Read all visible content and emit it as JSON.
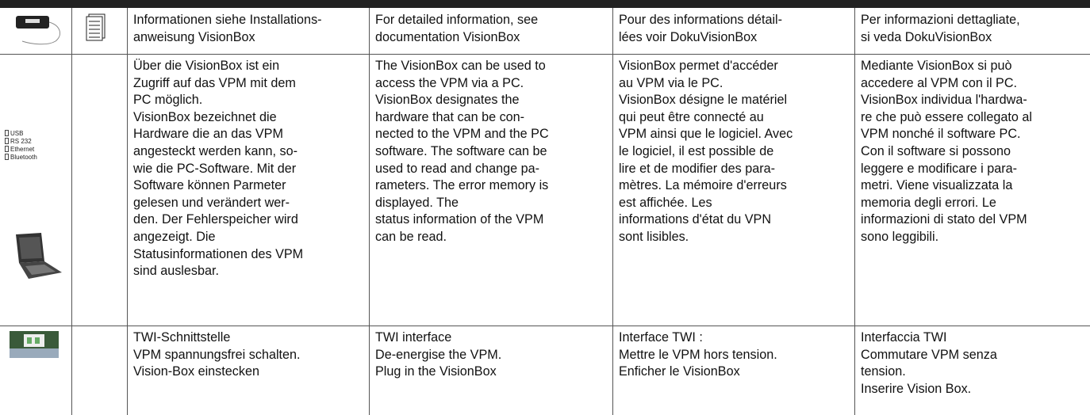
{
  "interfaces": [
    "USB",
    "RS 232",
    "Ethernet",
    "Bluetooth"
  ],
  "rows": [
    {
      "cells": [
        [
          "Informationen siehe Installations-",
          "anweisung VisionBox"
        ],
        [
          "For detailed information, see",
          "documentation VisionBox"
        ],
        [
          "Pour des informations détail-",
          "lées voir DokuVisionBox"
        ],
        [
          "Per informazioni dettagliate,",
          "si veda DokuVisionBox"
        ]
      ]
    },
    {
      "cells": [
        [
          "Über die VisionBox ist ein",
          "Zugriff auf das VPM mit dem",
          "PC möglich.",
          "VisionBox bezeichnet die",
          "Hardware die an das VPM",
          "angesteckt werden kann, so-",
          "wie die PC-Software. Mit der",
          "Software können Parmeter",
          "gelesen und verändert wer-",
          "den. Der Fehlerspeicher wird",
          "angezeigt. Die",
          "Statusinformationen des VPM",
          "sind auslesbar."
        ],
        [
          "The VisionBox can be used to",
          "access the VPM via a PC.",
          "VisionBox designates the",
          "hardware that can be con-",
          "nected to the VPM and the PC",
          "software. The software can be",
          "used to read and change pa-",
          "rameters. The error memory is",
          "displayed. The",
          "status information of the VPM",
          "can be read."
        ],
        [
          "VisionBox permet d'accéder",
          "au VPM via le PC.",
          "VisionBox désigne le matériel",
          "qui peut être connecté au",
          "VPM ainsi que le logiciel. Avec",
          "le logiciel, il est possible de",
          "lire et de modifier des para-",
          "mètres. La mémoire d'erreurs",
          "est affichée. Les",
          "informations d'état du VPN",
          "sont lisibles."
        ],
        [
          "Mediante VisionBox si può",
          "accedere al VPM con il PC.",
          "VisionBox individua l'hardwa-",
          "re che può essere collegato al",
          "VPM nonché il software PC.",
          "Con il software si possono",
          "leggere e modificare i para-",
          "metri. Viene visualizzata la",
          "memoria degli errori. Le",
          "informazioni di stato del VPM",
          "sono leggibili."
        ]
      ]
    },
    {
      "cells": [
        [
          "TWI-Schnittstelle",
          "VPM spannungsfrei schalten.",
          "Vision-Box einstecken"
        ],
        [
          "TWI interface",
          "De-energise the VPM.",
          "Plug in the VisionBox"
        ],
        [
          "Interface TWI :",
          "Mettre le VPM hors tension.",
          "Enficher le VisionBox"
        ],
        [
          "Interfaccia TWI",
          "Commutare VPM senza",
          "tension.",
          "Inserire Vision Box."
        ]
      ]
    }
  ]
}
